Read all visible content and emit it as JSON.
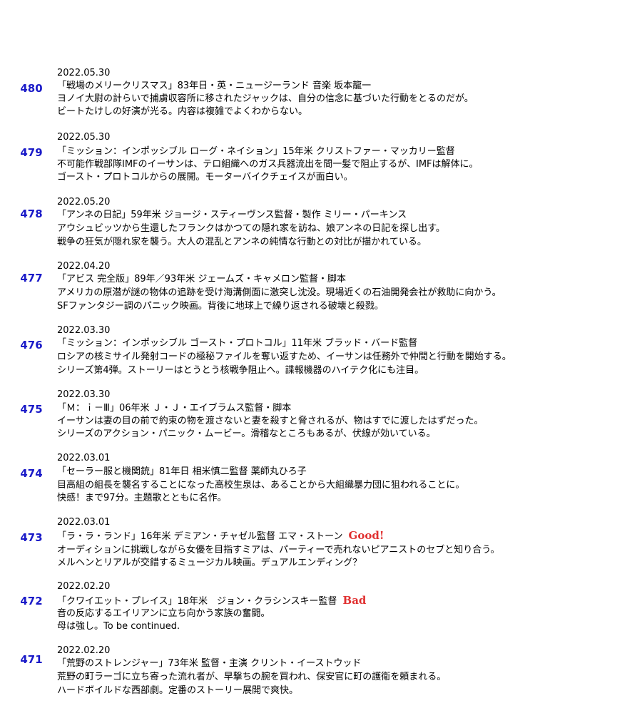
{
  "entries": [
    {
      "number": "480",
      "date": "2022.05.30",
      "title": "「戦場のメリークリスマス」83年日・英・ニュージーランド 音楽 坂本龍一",
      "rating": "",
      "line1": "ヨノイ大尉の計らいで捕虜収容所に移されたジャックは、自分の信念に基づいた行動をとるのだが。",
      "line2": "ビートたけしの好演が光る。内容は複雑でよくわからない。"
    },
    {
      "number": "479",
      "date": "2022.05.30",
      "title": "「ミッション：インポッシブル ローグ・ネイション」15年米 クリストファー・マッカリー監督",
      "rating": "",
      "line1": "不可能作戦部隊IMFのイーサンは、テロ組織へのガス兵器流出を間一髪で阻止するが、IMFは解体に。",
      "line2": "ゴースト・プロトコルからの展開。モーターバイクチェイスが面白い。"
    },
    {
      "number": "478",
      "date": "2022.05.20",
      "title": "「アンネの日記」59年米 ジョージ・スティーヴンス監督・製作 ミリー・パーキンス",
      "rating": "",
      "line1": "アウシュビッツから生還したフランクはかつての隠れ家を訪ね、娘アンネの日記を探し出す。",
      "line2": "戦争の狂気が隠れ家を襲う。大人の混乱とアンネの純情な行動との対比が描かれている。"
    },
    {
      "number": "477",
      "date": "2022.04.20",
      "title": "「アビス 完全版」89年／93年米 ジェームズ・キャメロン監督・脚本",
      "rating": "",
      "line1": "アメリカの原潜が謎の物体の追跡を受け海溝側面に激突し沈没。現場近くの石油開発会社が救助に向かう。",
      "line2": "SFファンタジー調のパニック映画。背後に地球上で繰り返される破壊と殺戮。"
    },
    {
      "number": "476",
      "date": "2022.03.30",
      "title": "「ミッション：インポッシブル ゴースト・プロトコル」11年米 ブラッド・バード監督",
      "rating": "",
      "line1": "ロシアの核ミサイル発射コードの極秘ファイルを奪い返すため、イーサンは任務外で仲間と行動を開始する。",
      "line2": "シリーズ第4弾。ストーリーはとうとう核戦争阻止へ。諜報機器のハイテク化にも注目。"
    },
    {
      "number": "475",
      "date": "2022.03.30",
      "title": "「Ｍ：ｉ－Ⅲ」06年米 Ｊ・Ｊ・エイブラムス監督・脚本",
      "rating": "",
      "line1": "イーサンは妻の目の前で約束の物を渡さないと妻を殺すと脅されるが、物はすでに渡したはずだった。",
      "line2": "シリーズのアクション・パニック・ムービー。滑稽なところもあるが、伏線が効いている。"
    },
    {
      "number": "474",
      "date": "2022.03.01",
      "title": "「セーラー服と機関銃」81年日 相米慎二監督 薬師丸ひろ子",
      "rating": "",
      "line1": "目高組の組長を襲名することになった高校生泉は、あることから大組織暴力団に狙われることに。",
      "line2": "快感！まで97分。主題歌とともに名作。"
    },
    {
      "number": "473",
      "date": "2022.03.01",
      "title": "「ラ・ラ・ランド」16年米 デミアン・チャゼル監督 エマ・ストーン",
      "rating": "Good!",
      "line1": "オーディションに挑戦しながら女優を目指すミアは、パーティーで売れないピアニストのセブと知り合う。",
      "line2": "メルヘンとリアルが交錯するミュージカル映画。デュアルエンディング？"
    },
    {
      "number": "472",
      "date": "2022.02.20",
      "title": "「クワイエット・プレイス」18年米　ジョン・クラシンスキー監督",
      "rating": "Bad",
      "line1": "音の反応するエイリアンに立ち向かう家族の奮闘。",
      "line2": "母は強し。To be continued."
    },
    {
      "number": "471",
      "date": "2022.02.20",
      "title": "「荒野のストレンジャー」73年米 監督・主演 クリント・イーストウッド",
      "rating": "",
      "line1": "荒野の町ラーゴに立ち寄った流れ者が、早撃ちの腕を買われ、保安官に町の護衛を頼まれる。",
      "line2": "ハードボイルドな西部劇。定番のストーリー展開で爽快。"
    }
  ]
}
